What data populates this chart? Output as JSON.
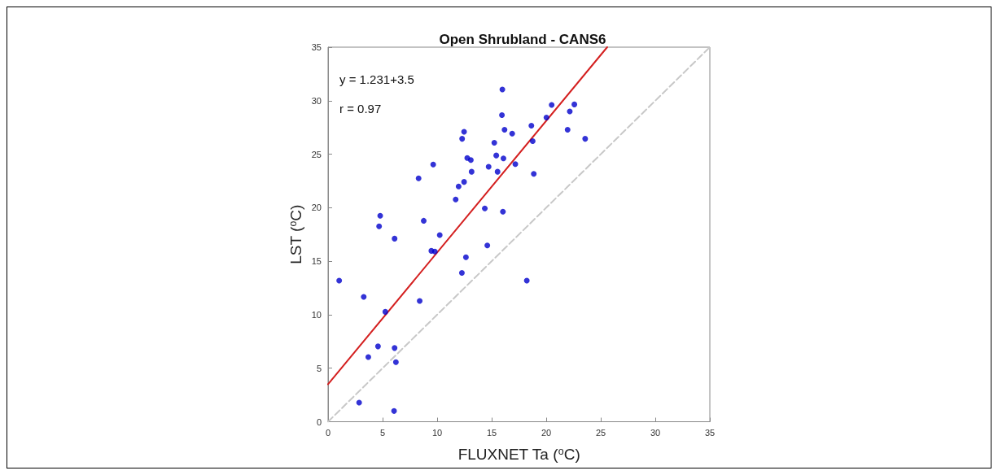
{
  "chart_data": {
    "type": "scatter",
    "title": "Open Shrubland - CANS6",
    "xlabel": "FLUXNET Ta ($^{o}$C)",
    "ylabel": "LST ($^{o}$C)",
    "annotations": [
      "y = 1.231+3.5",
      "r = 0.97"
    ],
    "xlim": [
      0,
      35
    ],
    "xticks": [
      0,
      5,
      10,
      15,
      20,
      25,
      30,
      35
    ],
    "ylim": [
      0,
      35
    ],
    "yticks": [
      0,
      5,
      10,
      15,
      20,
      25,
      30,
      35
    ],
    "grid": false,
    "series": [
      {
        "color": "#0000cc",
        "marker": "circle",
        "x": [
          15.98,
          15.94,
          16.18,
          16.88,
          12.47,
          12.29,
          15.24,
          18.64,
          18.76,
          20.02,
          20.5,
          22.16,
          22.58,
          21.96,
          23.57,
          15.42,
          16.08,
          12.76,
          13.09,
          9.64,
          17.17,
          14.72,
          15.54,
          13.16,
          18.86,
          8.3,
          12.47,
          11.97,
          11.7,
          14.37,
          16.03,
          4.78,
          4.68,
          8.77,
          10.24,
          6.1,
          9.47,
          9.79,
          14.6,
          12.64,
          12.27,
          1.02,
          18.22,
          3.27,
          8.4,
          5.25,
          4.58,
          6.1,
          3.69,
          6.22,
          2.85,
          6.05
        ],
        "values": [
          31.05,
          28.66,
          27.29,
          26.92,
          27.09,
          26.44,
          26.07,
          27.66,
          26.22,
          28.43,
          29.6,
          29.0,
          29.65,
          27.29,
          26.44,
          24.88,
          24.6,
          24.65,
          24.45,
          24.03,
          24.08,
          23.83,
          23.36,
          23.36,
          23.16,
          22.74,
          22.41,
          21.99,
          20.77,
          19.93,
          19.63,
          19.25,
          18.26,
          18.78,
          17.44,
          17.11,
          15.97,
          15.9,
          16.47,
          15.37,
          13.91,
          13.18,
          13.18,
          11.67,
          11.29,
          10.27,
          7.04,
          6.89,
          6.04,
          5.57,
          1.79,
          1.0
        ]
      },
      {
        "type": "line",
        "color": "#d42020",
        "marker": "none",
        "line_style": "solid",
        "x": [
          0,
          25.59
        ],
        "values": [
          3.5,
          35
        ]
      },
      {
        "type": "line",
        "color": "#c8c8c8",
        "marker": "none",
        "line_style": "dashed",
        "x": [
          0,
          35
        ],
        "values": [
          0,
          35
        ]
      }
    ]
  }
}
